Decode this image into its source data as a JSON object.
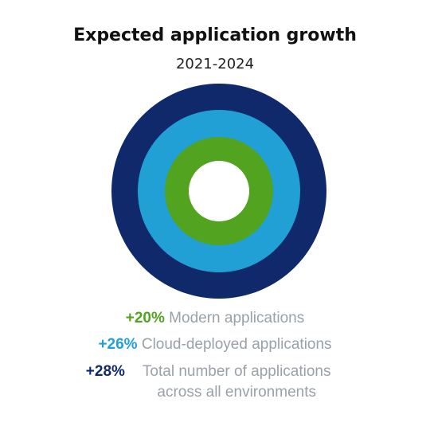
{
  "header": {
    "title": "Expected application growth",
    "subtitle": "2021-2024"
  },
  "colors": {
    "green": "#52a31f",
    "light_blue": "#21a0d6",
    "navy": "#10296b",
    "legend_text": "#9aa1a8"
  },
  "chart_data": {
    "type": "concentric-rings",
    "title": "Expected application growth",
    "subtitle": "2021-2024",
    "series": [
      {
        "value_label": "+20%",
        "value": 20,
        "label": "Modern applications",
        "color": "#52a31f"
      },
      {
        "value_label": "+26%",
        "value": 26,
        "label": "Cloud-deployed applications",
        "color": "#21a0d6"
      },
      {
        "value_label": "+28%",
        "value": 28,
        "label": "Total number of applications across all environments",
        "color": "#10296b"
      }
    ]
  }
}
